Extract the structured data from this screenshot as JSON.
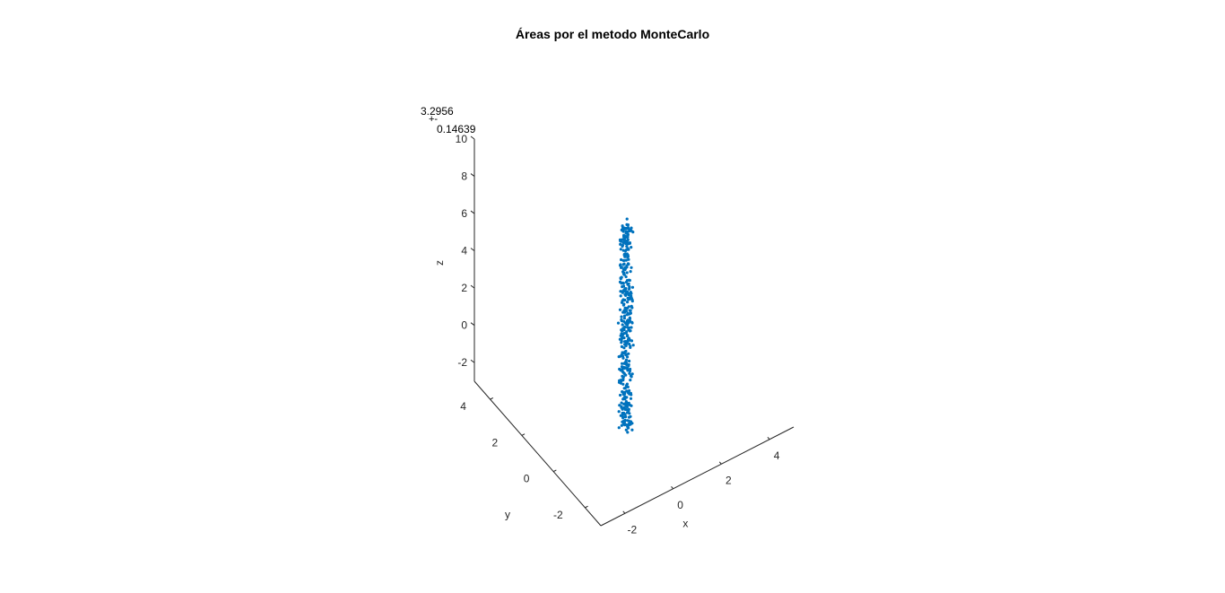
{
  "chart_data": {
    "type": "scatter",
    "title": "Áreas por el metodo MonteCarlo",
    "xlabel": "x",
    "ylabel": "y",
    "zlabel": "z",
    "annotation": {
      "line1": "3.2956",
      "line2": "+-",
      "line3": "0.14639"
    },
    "x_ticks": [
      "-2",
      "0",
      "2",
      "4"
    ],
    "y_ticks": [
      "-2",
      "0",
      "2",
      "4"
    ],
    "z_ticks": [
      "-2",
      "0",
      "2",
      "4",
      "6",
      "8",
      "10"
    ],
    "xlim": [
      -3,
      5
    ],
    "ylim": [
      -3,
      5
    ],
    "zlim": [
      -3,
      10
    ],
    "marker_color": "#0072BD",
    "point_count": 400,
    "x_range": [
      -0.2,
      0.2
    ],
    "y_range": [
      -0.2,
      0.2
    ],
    "z_range": [
      -2.8,
      8.4
    ],
    "grid": false,
    "legend": "none"
  }
}
